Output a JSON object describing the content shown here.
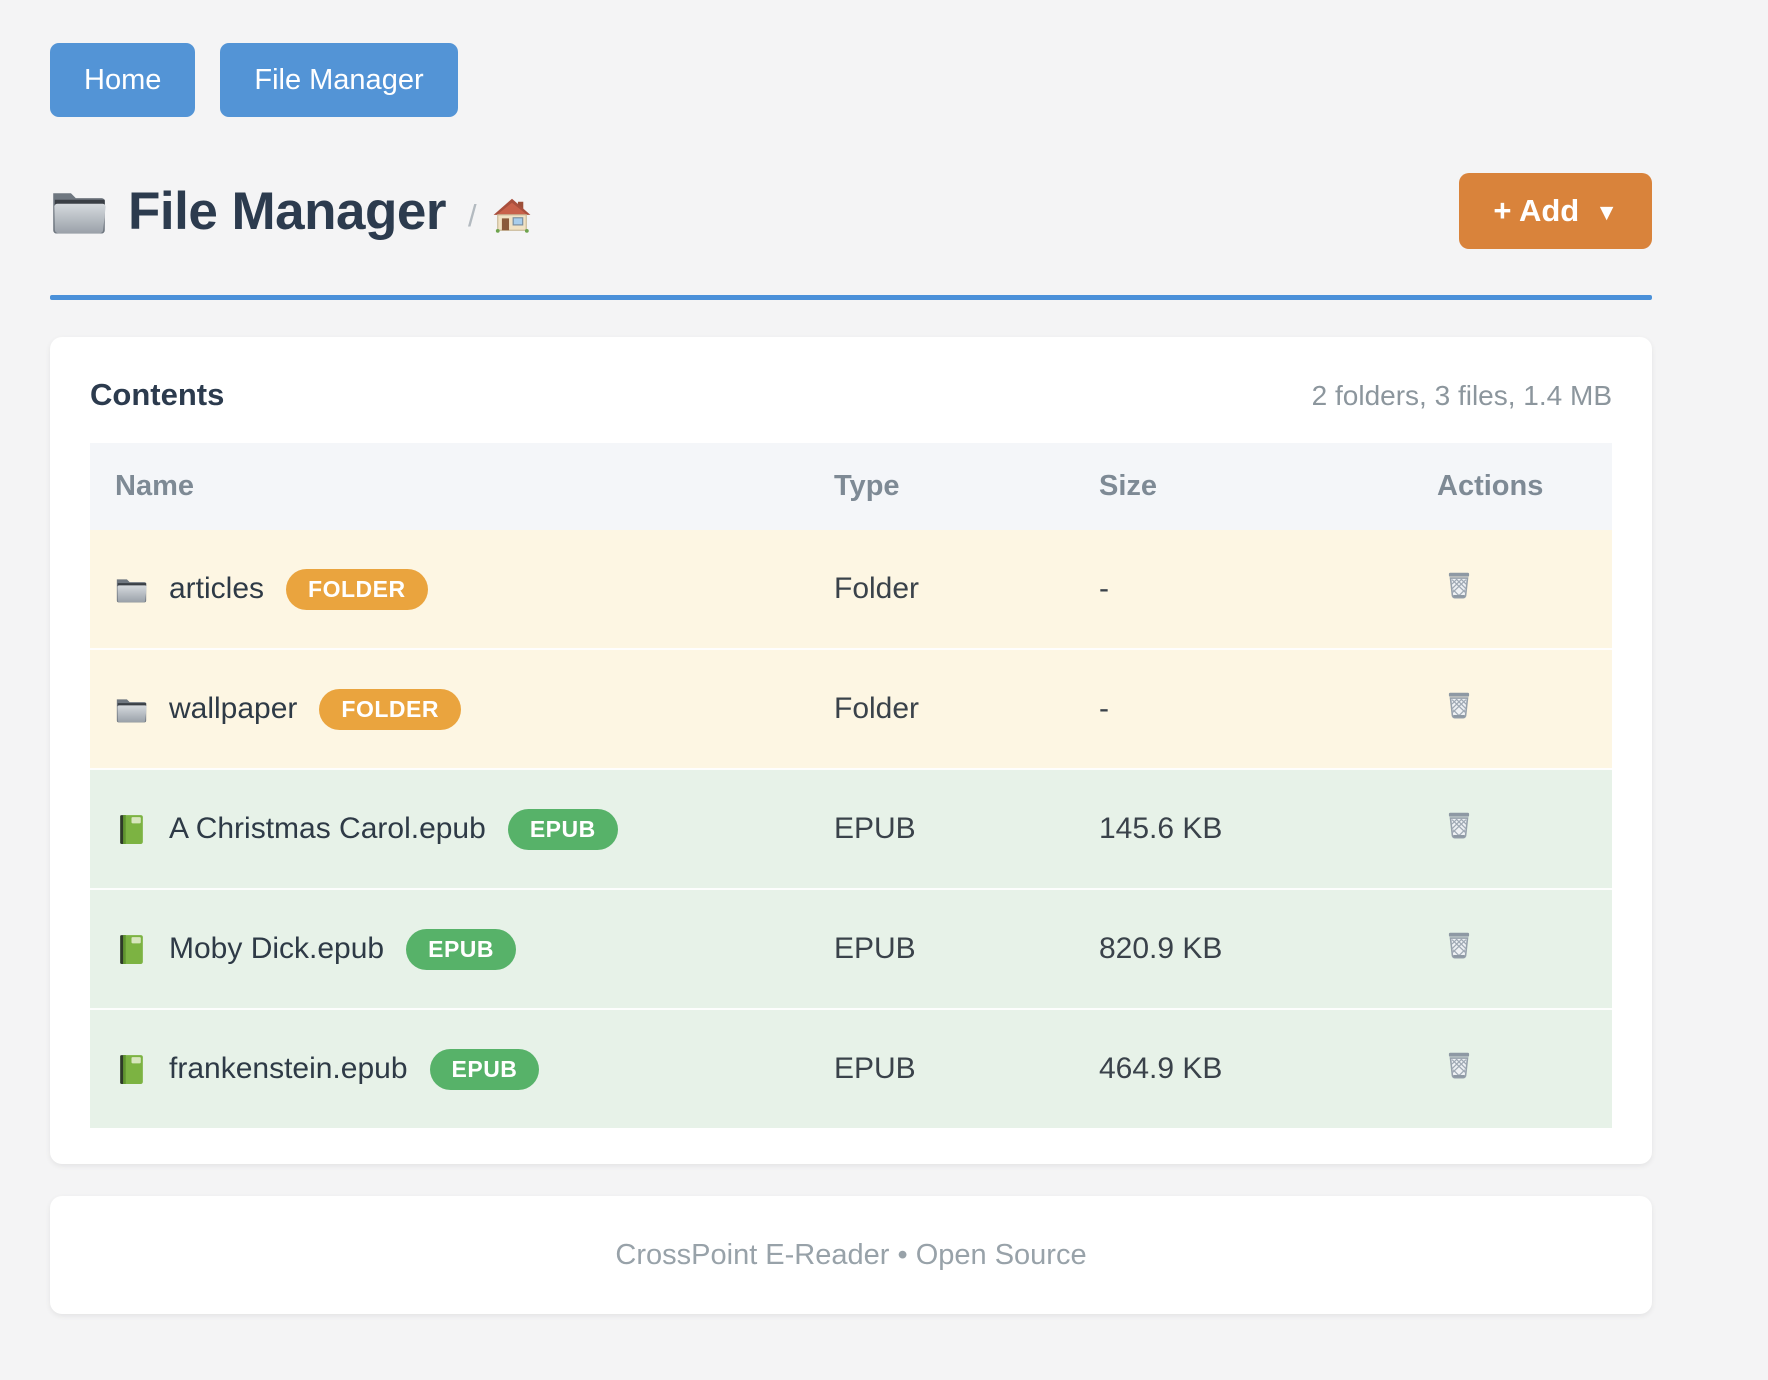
{
  "nav": {
    "items": [
      {
        "label": "Home"
      },
      {
        "label": "File Manager"
      }
    ]
  },
  "header": {
    "title": "File Manager",
    "title_icon": "folder-icon",
    "breadcrumb": {
      "separator": "/",
      "home_icon": "home-icon"
    },
    "add_button": {
      "label": "+ Add",
      "caret": "▼"
    }
  },
  "panel": {
    "title": "Contents",
    "summary": "2 folders, 3 files, 1.4 MB",
    "table": {
      "columns": [
        "Name",
        "Type",
        "Size",
        "Actions"
      ],
      "rows": [
        {
          "kind": "folder",
          "icon": "folder-icon",
          "name": "articles",
          "badge": "FOLDER",
          "type": "Folder",
          "size": "-",
          "action_icon": "trash-icon"
        },
        {
          "kind": "folder",
          "icon": "folder-icon",
          "name": "wallpaper",
          "badge": "FOLDER",
          "type": "Folder",
          "size": "-",
          "action_icon": "trash-icon"
        },
        {
          "kind": "epub",
          "icon": "book-icon",
          "name": "A Christmas Carol.epub",
          "badge": "EPUB",
          "type": "EPUB",
          "size": "145.6 KB",
          "action_icon": "trash-icon"
        },
        {
          "kind": "epub",
          "icon": "book-icon",
          "name": "Moby Dick.epub",
          "badge": "EPUB",
          "type": "EPUB",
          "size": "820.9 KB",
          "action_icon": "trash-icon"
        },
        {
          "kind": "epub",
          "icon": "book-icon",
          "name": "frankenstein.epub",
          "badge": "EPUB",
          "type": "EPUB",
          "size": "464.9 KB",
          "action_icon": "trash-icon"
        }
      ]
    }
  },
  "footer": {
    "text": "CrossPoint E-Reader • Open Source"
  },
  "colors": {
    "nav_button_blue": "#5394d6",
    "divider_blue": "#4a90d9",
    "add_button_orange": "#d9833b",
    "badge_folder_orange": "#eaa43e",
    "badge_epub_green": "#57b269",
    "row_folder_bg": "#fdf6e3",
    "row_epub_bg": "#e7f2e8",
    "table_header_bg": "#f4f6f9"
  }
}
